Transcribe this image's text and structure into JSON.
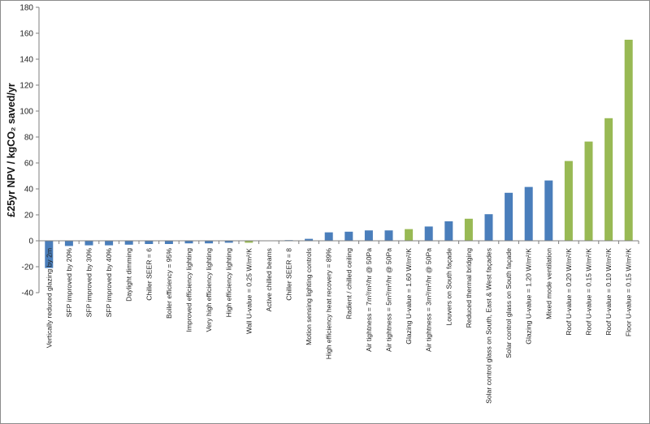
{
  "chart_data": {
    "type": "bar",
    "title": "",
    "xlabel": "",
    "ylabel": "£25yr NPV / kgCO₂ saved/yr",
    "ylim": [
      -40,
      180
    ],
    "yticks": [
      -40,
      -20,
      0,
      20,
      40,
      60,
      80,
      100,
      120,
      140,
      160,
      180
    ],
    "grid": false,
    "legend": "none",
    "colors": {
      "blue": "#4a7ebb",
      "green": "#98b954",
      "axis": "#7f7f7f"
    },
    "categories": [
      "Vertically reduced glazing by 2m",
      "SFP improved by 20%",
      "SFP improved by 30%",
      "SFP improved by 40%",
      "Daylight dimming",
      "Chiller SEER = 6",
      "Boiler efficiency = 95%",
      "Improved efficiency lighting",
      "Very high efficiency lighting",
      "High efficiency lighting",
      "Wall U-value = 0.25 W/m²/K",
      "Active chilled beams",
      "Chiller SEER = 8",
      "Motion sensing lighting controls",
      "High efficiency heat recovery = 89%",
      "Radient / chilled ceiling",
      "Air tightness = 7m³/m²/hr @ 50Pa",
      "Air tightness = 5m³/m²/hr @ 50Pa",
      "Glazing U-value = 1.60 W/m²/K",
      "Air tightness = 3m³/m²/hr @ 50Pa",
      "Louvers on South façade",
      "Reduced thermal bridging",
      "Solar control glass on South, East & West façades",
      "Solar control glass on South façade",
      "Glazing U-value = 1.20 W/m²/K",
      "Mixed mode ventilation",
      "Roof U-value = 0.20 W/m²/K",
      "Roof U-value = 0.15 W/m²/K",
      "Roof U-value = 0.10 W/m²/K",
      "Floor U-value = 0.15 W/m²/K"
    ],
    "values": [
      -21,
      -4,
      -3.5,
      -3.5,
      -3,
      -2.5,
      -2.5,
      -2,
      -2,
      -1.5,
      -1.5,
      0,
      0.5,
      1.5,
      6.5,
      7,
      8,
      8,
      9,
      11,
      15,
      17,
      20.5,
      37,
      41.5,
      46.5,
      61.5,
      76.5,
      94.5,
      155
    ],
    "bar_colors": [
      "blue",
      "blue",
      "blue",
      "blue",
      "blue",
      "blue",
      "blue",
      "blue",
      "blue",
      "blue",
      "green",
      "blue",
      "blue",
      "blue",
      "blue",
      "blue",
      "blue",
      "blue",
      "green",
      "blue",
      "blue",
      "green",
      "blue",
      "blue",
      "blue",
      "blue",
      "green",
      "green",
      "green",
      "green"
    ]
  }
}
